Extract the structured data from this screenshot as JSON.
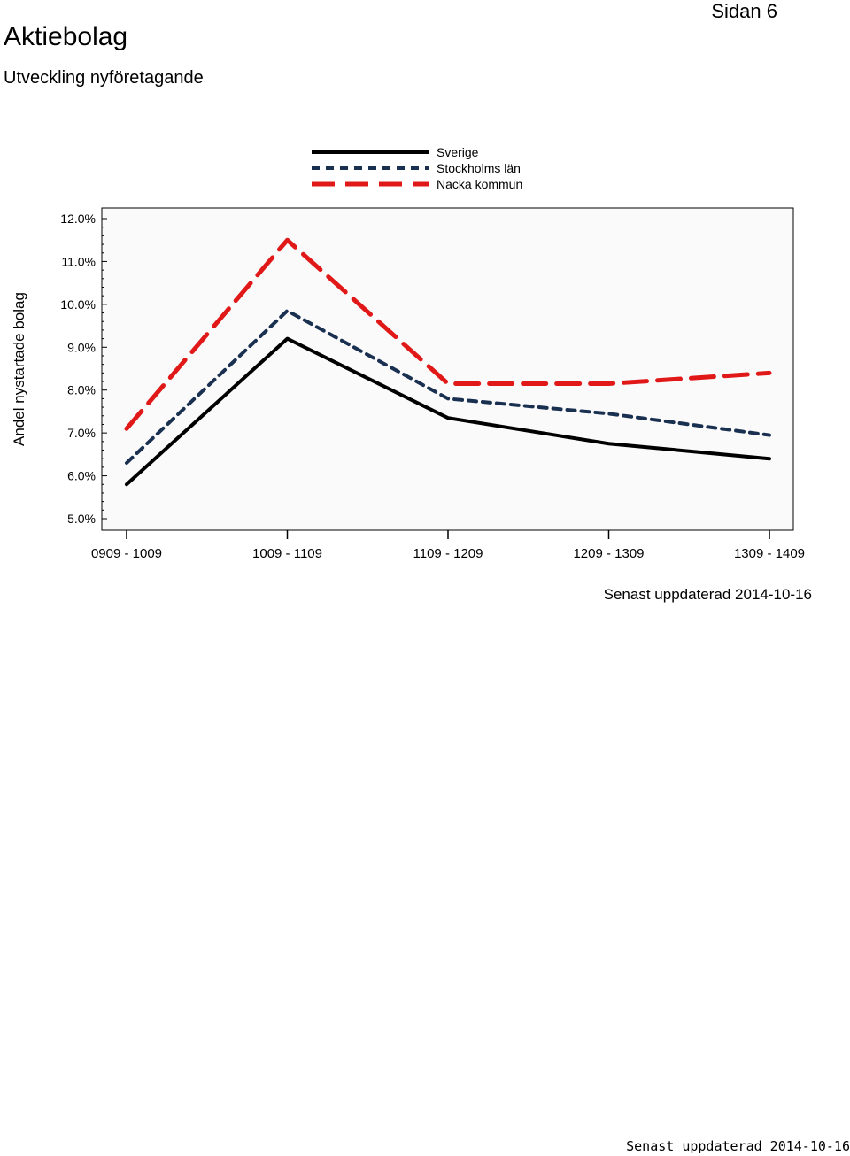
{
  "header": {
    "title": "Aktiebolag",
    "subtitle": "Utveckling nyföretagande",
    "page_label": "Sidan 6"
  },
  "chart_data": {
    "type": "line",
    "title": "",
    "xlabel": "",
    "ylabel": "Andel nystartade bolag",
    "categories": [
      "0909 - 1009",
      "1009 - 1109",
      "1109 - 1209",
      "1209 - 1309",
      "1309 - 1409"
    ],
    "ylim": [
      5.0,
      12.0
    ],
    "yticks": [
      "5.0%",
      "6.0%",
      "7.0%",
      "8.0%",
      "9.0%",
      "10.0%",
      "11.0%",
      "12.0%"
    ],
    "legend_position": "top",
    "series": [
      {
        "name": "Sverige",
        "values": [
          5.8,
          9.2,
          7.35,
          6.75,
          6.4
        ],
        "color": "#000000",
        "style": "solid"
      },
      {
        "name": "Stockholms län",
        "values": [
          6.3,
          9.85,
          7.8,
          7.45,
          6.95
        ],
        "color": "#1a3050",
        "style": "dashed"
      },
      {
        "name": "Nacka kommun",
        "values": [
          7.1,
          11.5,
          8.15,
          8.15,
          8.4
        ],
        "color": "#e01818",
        "style": "long-dashed"
      }
    ]
  },
  "footer": {
    "updated_chart": "Senast uppdaterad 2014-10-16",
    "updated_page": "Senast uppdaterad 2014-10-16"
  }
}
